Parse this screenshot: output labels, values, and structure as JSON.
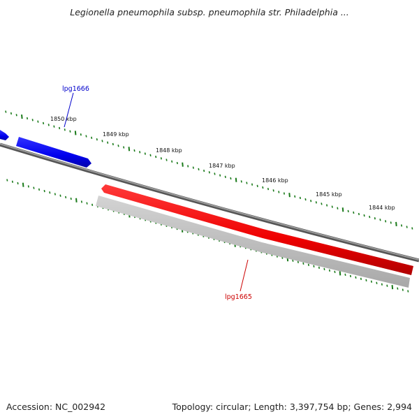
{
  "title": "Legionella pneumophila subsp. pneumophila str. Philadelphia ...",
  "ruler": {
    "labels": [
      "1850 kbp",
      "1849 kbp",
      "1848 kbp",
      "1847 kbp",
      "1846 kbp",
      "1845 kbp",
      "1844 kbp"
    ],
    "tick_color": "#1a7a1a"
  },
  "genes": [
    {
      "name": "lpg1666",
      "strand": "forward",
      "color": "#0000ee"
    },
    {
      "name": "lpg1665",
      "strand": "reverse",
      "color": "#ee0000"
    }
  ],
  "backbone_color": "#808080",
  "footer": {
    "accession": "Accession: NC_002942",
    "summary": "Topology: circular; Length: 3,397,754 bp; Genes: 2,994"
  }
}
